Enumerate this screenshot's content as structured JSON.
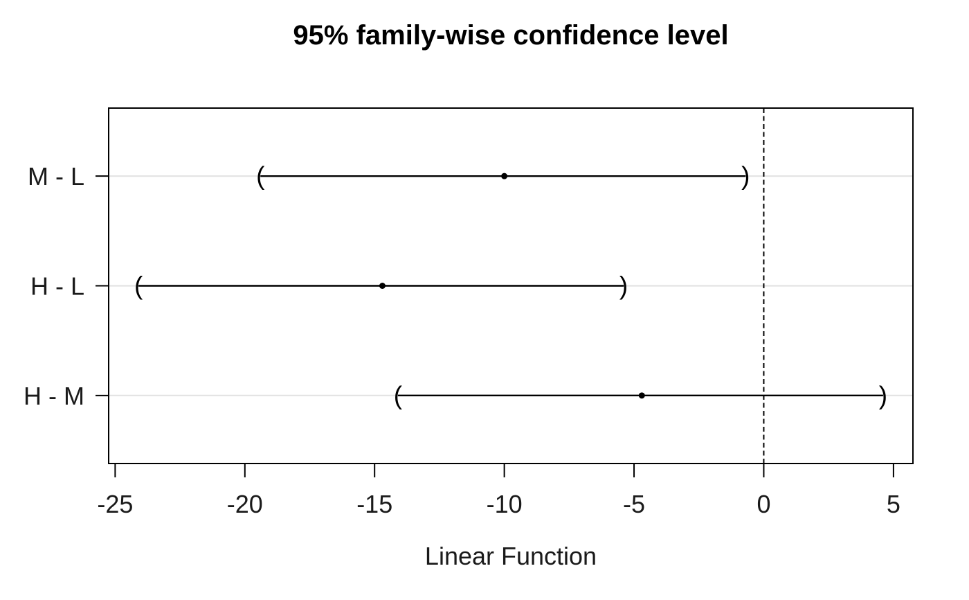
{
  "chart_data": {
    "type": "scatter",
    "subtype": "simultaneous-confidence-intervals",
    "title": "95% family-wise confidence level",
    "xlabel": "Linear Function",
    "ylabel": "",
    "categories": [
      "M - L",
      "H - L",
      "H - M"
    ],
    "intervals": [
      {
        "label": "M - L",
        "estimate": -10.0,
        "lower": -19.4,
        "upper": -0.7
      },
      {
        "label": "H - L",
        "estimate": -14.7,
        "lower": -24.1,
        "upper": -5.4
      },
      {
        "label": "H - M",
        "estimate": -4.7,
        "lower": -14.1,
        "upper": 4.6
      }
    ],
    "xticks": [
      -25,
      -20,
      -15,
      -10,
      -5,
      0,
      5
    ],
    "xlim": [
      -25.25,
      5.75
    ],
    "ylim": [
      0.38,
      3.62
    ],
    "y_positions": [
      3,
      2,
      1
    ],
    "reference_line_x": 0,
    "grid": "horizontal-light",
    "legend_position": "none",
    "endpoint_glyphs": [
      "(",
      ")"
    ],
    "colors": {
      "line": "#000000",
      "text": "#1a1a1a",
      "grid": "#e3e3e3",
      "reference_line": "#000000",
      "background": "#ffffff"
    }
  }
}
